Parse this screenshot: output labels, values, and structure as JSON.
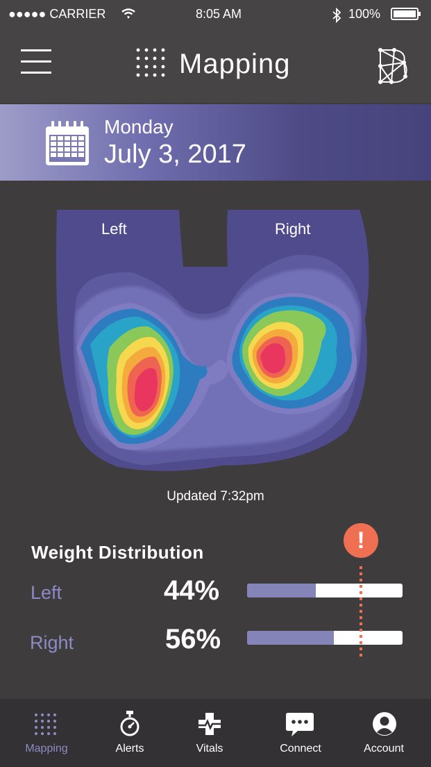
{
  "status_bar": {
    "carrier": "●●●●● CARRIER",
    "time": "8:05 AM",
    "battery": "100%"
  },
  "header": {
    "title": "Mapping",
    "menu_icon": "hamburger-icon",
    "logo_icon": "network-logo-icon"
  },
  "date": {
    "weekday": "Monday",
    "full_date": "July 3, 2017"
  },
  "pressure_map": {
    "left_label": "Left",
    "right_label": "Right",
    "updated": "Updated 7:32pm"
  },
  "weight_distribution": {
    "title": "Weight Distribution",
    "alert_icon": "!",
    "rows": [
      {
        "label": "Left",
        "value_text": "44%",
        "fraction": 0.44
      },
      {
        "label": "Right",
        "value_text": "56%",
        "fraction": 0.56
      }
    ],
    "threshold_fraction": 0.73,
    "colors": {
      "bar_fill": "#8584b8",
      "alert": "#ee6f52",
      "threshold": "#ee6f52",
      "label": "#8c8bc4"
    }
  },
  "tabs": [
    {
      "label": "Mapping",
      "icon": "dot-grid-icon",
      "active": true
    },
    {
      "label": "Alerts",
      "icon": "stopwatch-icon",
      "active": false
    },
    {
      "label": "Vitals",
      "icon": "heartbeat-cross-icon",
      "active": false
    },
    {
      "label": "Connect",
      "icon": "chat-bubble-icon",
      "active": false
    },
    {
      "label": "Account",
      "icon": "user-avatar-icon",
      "active": false
    }
  ]
}
